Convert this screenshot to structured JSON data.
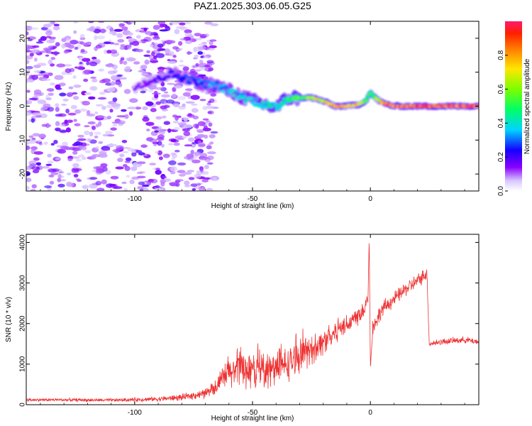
{
  "title": "PAZ1.2025.303.06.05.G25",
  "chart_data": [
    {
      "type": "heatmap",
      "name": "spectrogram",
      "xlabel": "Height of straight line (km)",
      "ylabel": "Frequency (Hz)",
      "xlim": [
        -146,
        46
      ],
      "ylim": [
        -25,
        25
      ],
      "xticks": [
        -100,
        -50,
        0
      ],
      "yticks": [
        20,
        10,
        0,
        -10,
        -20
      ],
      "noise_region_x": [
        -146,
        -70
      ],
      "ridge": {
        "x": [
          -100,
          -90,
          -85,
          -80,
          -75,
          -70,
          -65,
          -60,
          -55,
          -50,
          -45,
          -40,
          -35,
          -30,
          -25,
          -20,
          -15,
          -10,
          -5,
          -2,
          0,
          2,
          5,
          10,
          20,
          30,
          46
        ],
        "y": [
          6,
          8,
          9.5,
          8.5,
          7.5,
          6.5,
          6,
          4.5,
          3,
          1.5,
          0.5,
          -0.5,
          2.5,
          2.5,
          2.5,
          1.5,
          0,
          0,
          0.5,
          1.5,
          4,
          2.5,
          1,
          0,
          0,
          0,
          0
        ],
        "amplitude": [
          0.15,
          0.2,
          0.25,
          0.3,
          0.3,
          0.35,
          0.35,
          0.4,
          0.4,
          0.42,
          0.45,
          0.45,
          0.5,
          0.6,
          0.7,
          0.8,
          0.9,
          0.9,
          0.8,
          0.6,
          0.5,
          0.6,
          0.9,
          0.95,
          1.0,
          1.0,
          1.0
        ]
      },
      "colorbar": {
        "label": "Normalized spectral amplitude",
        "range": [
          0,
          1
        ],
        "ticks": [
          "0.0",
          "0.2",
          "0.4",
          "0.6",
          "0.8"
        ]
      }
    },
    {
      "type": "line",
      "name": "snr",
      "xlabel": "Height of straight line (km)",
      "ylabel": "SNR (10 * v/v)",
      "xlim": [
        -146,
        46
      ],
      "ylim": [
        0,
        4200
      ],
      "xticks": [
        -100,
        -50,
        0
      ],
      "yticks": [
        0,
        1000,
        2000,
        3000,
        4000
      ],
      "series": [
        {
          "name": "SNR",
          "color": "#ee3333",
          "x": [
            -146,
            -130,
            -110,
            -90,
            -80,
            -70,
            -65,
            -60,
            -55,
            -50,
            -45,
            -40,
            -35,
            -30,
            -25,
            -20,
            -15,
            -10,
            -5,
            -2,
            -1,
            -0.5,
            0,
            1,
            5,
            10,
            15,
            20,
            24,
            25,
            30,
            40,
            46
          ],
          "y": [
            120,
            120,
            110,
            140,
            180,
            280,
            480,
            800,
            900,
            850,
            850,
            900,
            1000,
            1200,
            1350,
            1550,
            1800,
            2000,
            2200,
            2450,
            2650,
            4150,
            900,
            1900,
            2350,
            2600,
            2850,
            3050,
            3250,
            1500,
            1550,
            1600,
            1550
          ],
          "noise_envelope": [
            40,
            40,
            40,
            60,
            80,
            120,
            220,
            450,
            500,
            480,
            450,
            450,
            420,
            400,
            380,
            320,
            300,
            280,
            260,
            240,
            200,
            0,
            0,
            220,
            200,
            180,
            180,
            180,
            160,
            80,
            80,
            80,
            80
          ]
        }
      ]
    }
  ]
}
